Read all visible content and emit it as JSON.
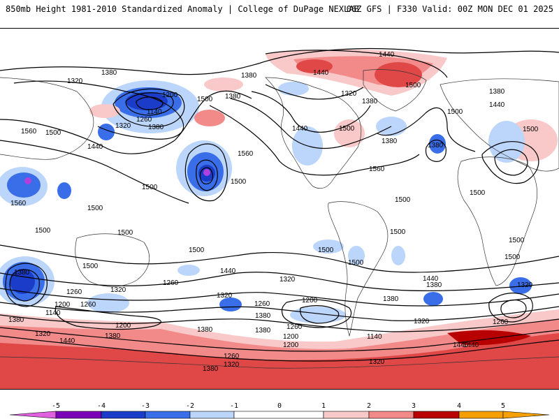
{
  "header": {
    "title": "850mb Height 1981-2010 Standardized Anomaly | College of DuPage NEXLAB",
    "run_info": "06Z GFS | F330 Valid: 00Z MON DEC 01 2025"
  },
  "colors": {
    "contour": "#000000",
    "land_border": "#333333",
    "neg5": "#e060e0",
    "neg4": "#7a00b8",
    "neg3": "#1a3cc8",
    "neg2": "#3a6ee8",
    "neg1": "#bcd6fb",
    "zero": "#ffffff",
    "pos1": "#f9c8c8",
    "pos2": "#f28a8a",
    "pos3": "#e04848",
    "pos4": "#b80000",
    "pos5": "#f5a000"
  },
  "colorbar": {
    "ticks": [
      "-5",
      "-4",
      "-3",
      "-2",
      "-1",
      "0",
      "1",
      "2",
      "3",
      "4",
      "5"
    ],
    "classes": [
      "neg5",
      "neg4",
      "neg3",
      "neg2",
      "neg1",
      "pos1",
      "pos2",
      "pos3",
      "pos4",
      "pos5"
    ]
  },
  "contour_labels": [
    {
      "text": "1440",
      "id": "c1"
    },
    {
      "text": "1380",
      "id": "c2"
    },
    {
      "text": "1320",
      "id": "c3"
    },
    {
      "text": "1380",
      "id": "c4"
    },
    {
      "text": "1440",
      "id": "c5"
    },
    {
      "text": "1500",
      "id": "c6"
    },
    {
      "text": "1200",
      "id": "c7"
    },
    {
      "text": "1140",
      "id": "c8"
    },
    {
      "text": "1260",
      "id": "c9"
    },
    {
      "text": "1320",
      "id": "c10"
    },
    {
      "text": "1380",
      "id": "c11"
    },
    {
      "text": "1500",
      "id": "c12"
    },
    {
      "text": "1380",
      "id": "c13"
    },
    {
      "text": "1560",
      "id": "c14"
    },
    {
      "text": "1500",
      "id": "c15"
    },
    {
      "text": "1560",
      "id": "c16"
    },
    {
      "text": "1500",
      "id": "c17"
    },
    {
      "text": "1440",
      "id": "c18"
    },
    {
      "text": "1500",
      "id": "c19"
    },
    {
      "text": "1380",
      "id": "c20"
    },
    {
      "text": "1320",
      "id": "c21"
    },
    {
      "text": "1440",
      "id": "c22"
    },
    {
      "text": "1380",
      "id": "c23"
    },
    {
      "text": "1500",
      "id": "c24"
    },
    {
      "text": "1560",
      "id": "c25"
    },
    {
      "text": "1380",
      "id": "c26"
    },
    {
      "text": "1500",
      "id": "c27"
    },
    {
      "text": "1440",
      "id": "c28"
    },
    {
      "text": "1380",
      "id": "c29"
    },
    {
      "text": "1500",
      "id": "c30"
    },
    {
      "text": "1500",
      "id": "c31"
    },
    {
      "text": "1560",
      "id": "c32"
    },
    {
      "text": "1500",
      "id": "c33"
    },
    {
      "text": "1500",
      "id": "c34"
    },
    {
      "text": "1500",
      "id": "c35"
    },
    {
      "text": "1500",
      "id": "c36"
    },
    {
      "text": "1500",
      "id": "c37"
    },
    {
      "text": "1500",
      "id": "c38"
    },
    {
      "text": "1500",
      "id": "c39"
    },
    {
      "text": "1500",
      "id": "c40"
    },
    {
      "text": "1440",
      "id": "c41"
    },
    {
      "text": "1380",
      "id": "c42"
    },
    {
      "text": "1320",
      "id": "c43"
    },
    {
      "text": "1260",
      "id": "c44"
    },
    {
      "text": "1200",
      "id": "c45"
    },
    {
      "text": "1140",
      "id": "c46"
    },
    {
      "text": "1260",
      "id": "c47"
    },
    {
      "text": "1200",
      "id": "c48"
    },
    {
      "text": "1320",
      "id": "c49"
    },
    {
      "text": "1380",
      "id": "c50"
    },
    {
      "text": "1440",
      "id": "c51"
    },
    {
      "text": "1320",
      "id": "c52"
    },
    {
      "text": "1260",
      "id": "c53"
    },
    {
      "text": "1200",
      "id": "c54"
    },
    {
      "text": "1380",
      "id": "c55"
    },
    {
      "text": "1200",
      "id": "c56"
    },
    {
      "text": "1260",
      "id": "c57"
    },
    {
      "text": "1140",
      "id": "c58"
    },
    {
      "text": "1200",
      "id": "c59"
    },
    {
      "text": "1260",
      "id": "c60"
    },
    {
      "text": "1320",
      "id": "c61"
    },
    {
      "text": "1380",
      "id": "c62"
    },
    {
      "text": "1440",
      "id": "c63"
    },
    {
      "text": "1380",
      "id": "c64"
    },
    {
      "text": "1320",
      "id": "c65"
    },
    {
      "text": "1260",
      "id": "c66"
    },
    {
      "text": "1380",
      "id": "c67"
    },
    {
      "text": "1440",
      "id": "c68"
    },
    {
      "text": "1320",
      "id": "c69"
    },
    {
      "text": "1260",
      "id": "c70"
    },
    {
      "text": "1320",
      "id": "c71"
    },
    {
      "text": "1440",
      "id": "c72"
    },
    {
      "text": "1380",
      "id": "c73"
    },
    {
      "text": "1380",
      "id": "c74"
    },
    {
      "text": "1320",
      "id": "c75"
    },
    {
      "text": "1380",
      "id": "c76"
    },
    {
      "text": "1500",
      "id": "c77"
    },
    {
      "text": "1500",
      "id": "c78"
    },
    {
      "text": "1500",
      "id": "c79"
    }
  ]
}
